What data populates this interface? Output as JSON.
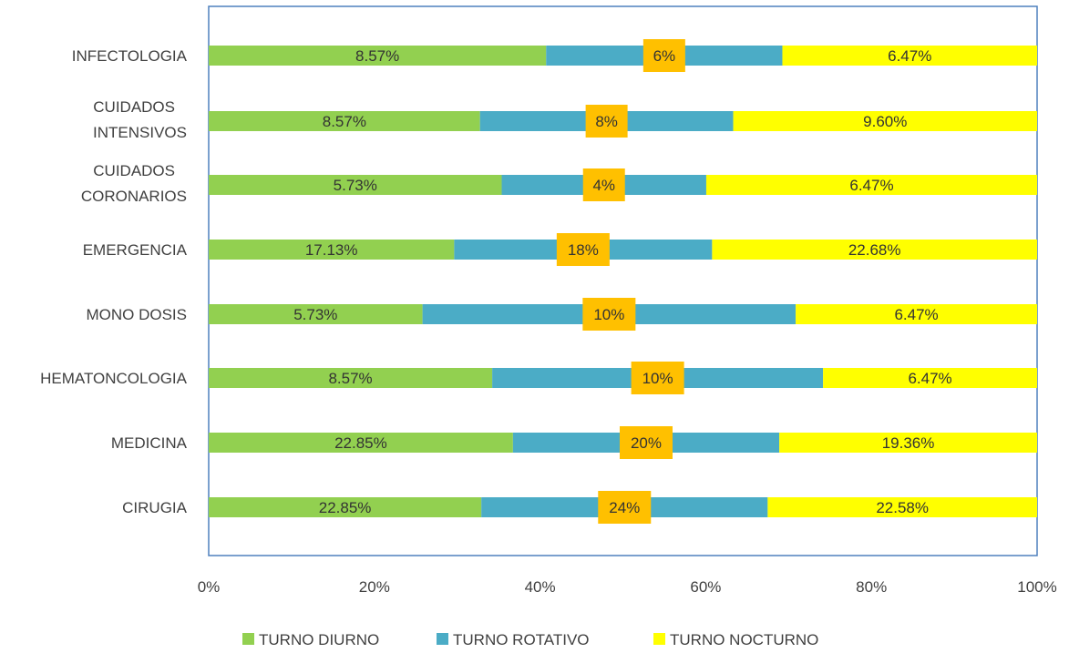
{
  "chart_data": {
    "type": "bar",
    "orientation": "horizontal",
    "stacking": "percent",
    "categories": [
      "CIRUGIA",
      "MEDICINA",
      "HEMATONCOLOGIA",
      "MONO DOSIS",
      "EMERGENCIA",
      "CUIDADOS CORONARIOS",
      "CUIDADOS INTENSIVOS",
      "INFECTOLOGIA"
    ],
    "series": [
      {
        "name": "TURNO DIURNO",
        "color": "#92D050",
        "values": [
          22.85,
          22.85,
          8.57,
          5.73,
          17.13,
          5.73,
          8.57,
          8.57
        ],
        "labels": [
          "22.85%",
          "22.85%",
          "8.57%",
          "5.73%",
          "17.13%",
          "5.73%",
          "8.57%",
          "8.57%"
        ]
      },
      {
        "name": "TURNO ROTATIVO",
        "color": "#4BACC6",
        "values": [
          24,
          20,
          10,
          10,
          18,
          4,
          8,
          6
        ],
        "labels": [
          "24%",
          "20%",
          "10%",
          "10%",
          "18%",
          "4%",
          "8%",
          "6%"
        ]
      },
      {
        "name": "TURNO NOCTURNO",
        "color": "#FFFF00",
        "values": [
          22.58,
          19.36,
          6.47,
          6.47,
          22.68,
          6.47,
          9.6,
          6.47
        ],
        "labels": [
          "22.58%",
          "19.36%",
          "6.47%",
          "6.47%",
          "22.68%",
          "6.47%",
          "9.60%",
          "6.47%"
        ]
      }
    ],
    "xlim": [
      0,
      100
    ],
    "xticks": [
      "0%",
      "20%",
      "40%",
      "60%",
      "80%",
      "100%"
    ],
    "grid": false,
    "legend_position": "bottom",
    "label_box_color": "#FFC000",
    "axis_color": "#4F81BD"
  }
}
